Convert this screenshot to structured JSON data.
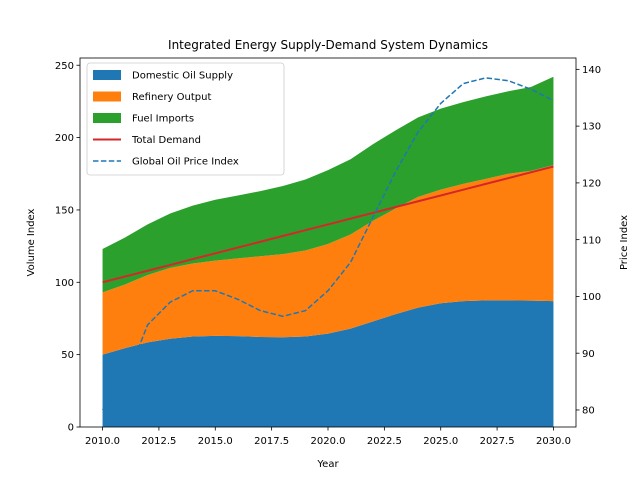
{
  "chart_data": {
    "type": "area",
    "title": "Integrated Energy Supply-Demand System Dynamics",
    "xlabel": "Year",
    "ylabel": "Volume Index",
    "y2label": "Price Index",
    "xlim": [
      2009.0,
      2031.0
    ],
    "ylim": [
      0,
      255
    ],
    "y2lim": [
      77,
      142
    ],
    "x_ticks": [
      2010.0,
      2012.5,
      2015.0,
      2017.5,
      2020.0,
      2022.5,
      2025.0,
      2027.5,
      2030.0
    ],
    "x_tick_labels": [
      "2010.0",
      "2012.5",
      "2015.0",
      "2017.5",
      "2020.0",
      "2022.5",
      "2025.0",
      "2027.5",
      "2030.0"
    ],
    "y_ticks": [
      0,
      50,
      100,
      150,
      200,
      250
    ],
    "y_tick_labels": [
      "0",
      "50",
      "100",
      "150",
      "200",
      "250"
    ],
    "y2_ticks": [
      80,
      90,
      100,
      110,
      120,
      130,
      140
    ],
    "y2_tick_labels": [
      "80",
      "90",
      "100",
      "110",
      "120",
      "130",
      "140"
    ],
    "legend_position": "top-left",
    "grid": false,
    "x": [
      2010,
      2011,
      2012,
      2013,
      2014,
      2015,
      2016,
      2017,
      2018,
      2019,
      2020,
      2021,
      2022,
      2023,
      2024,
      2025,
      2026,
      2027,
      2028,
      2029,
      2030
    ],
    "series": [
      {
        "name": "Domestic Oil Supply",
        "kind": "stacked-area",
        "color": "#1f77b4",
        "values": [
          50,
          54.5,
          58.5,
          61,
          62.5,
          63,
          62.8,
          62.2,
          62,
          62.5,
          64.5,
          68,
          73,
          78,
          82.5,
          85.5,
          87,
          87.5,
          87.5,
          87.3,
          87
        ]
      },
      {
        "name": "Refinery Output",
        "kind": "stacked-area",
        "color": "#ff7f0e",
        "values": [
          43,
          44,
          46.5,
          49,
          50.5,
          52,
          53.7,
          55.8,
          57.5,
          59.5,
          62,
          65,
          69.5,
          73,
          76.5,
          78.5,
          81,
          84,
          87.5,
          89.7,
          94
        ]
      },
      {
        "name": "Fuel Imports",
        "kind": "stacked-area",
        "color": "#2ca02c",
        "values": [
          30,
          32.5,
          35,
          37.5,
          40,
          42,
          43.5,
          45,
          47,
          49,
          51,
          52,
          53,
          54,
          55,
          56,
          56.5,
          57,
          57,
          58,
          61
        ]
      },
      {
        "name": "Total Demand",
        "kind": "line",
        "color": "#d62728",
        "axis": "left",
        "values": [
          100,
          104,
          108,
          112,
          116,
          120,
          124,
          128,
          132,
          136,
          140,
          144,
          148,
          152,
          156,
          160,
          164,
          168,
          172,
          176,
          180
        ]
      },
      {
        "name": "Global Oil Price Index",
        "kind": "dashed-line",
        "color": "#1f77b4",
        "axis": "right",
        "values": [
          80,
          85,
          95,
          99,
          101,
          101,
          99.5,
          97.5,
          96.5,
          97.5,
          101,
          106,
          114,
          122,
          129,
          134,
          137.5,
          138.5,
          138,
          136.5,
          134.5
        ]
      }
    ]
  }
}
